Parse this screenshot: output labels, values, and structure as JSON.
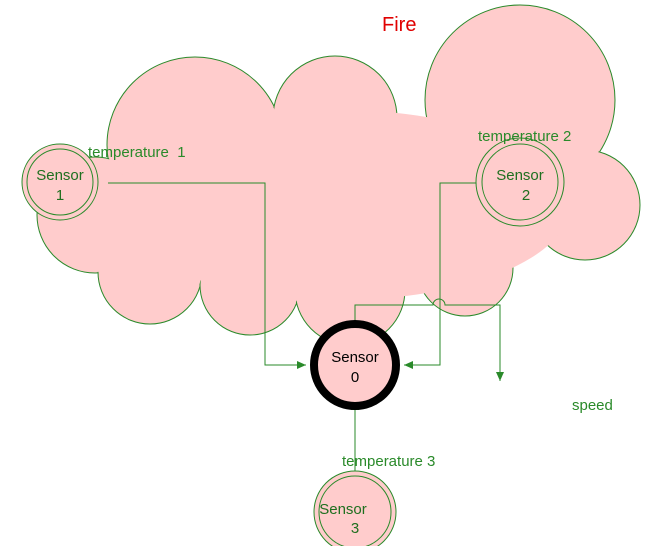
{
  "title": "Fire",
  "nodes": [
    {
      "label": [
        "Sensor",
        "1"
      ]
    },
    {
      "label": [
        "Sensor",
        "2"
      ]
    },
    {
      "label": [
        "Sensor",
        "0"
      ]
    },
    {
      "label": [
        "Sensor",
        "3"
      ]
    }
  ],
  "edges": [
    {
      "label": "temperature  1"
    },
    {
      "label": "temperature 2"
    },
    {
      "label": "temperature 3"
    },
    {
      "label": "speed"
    }
  ]
}
